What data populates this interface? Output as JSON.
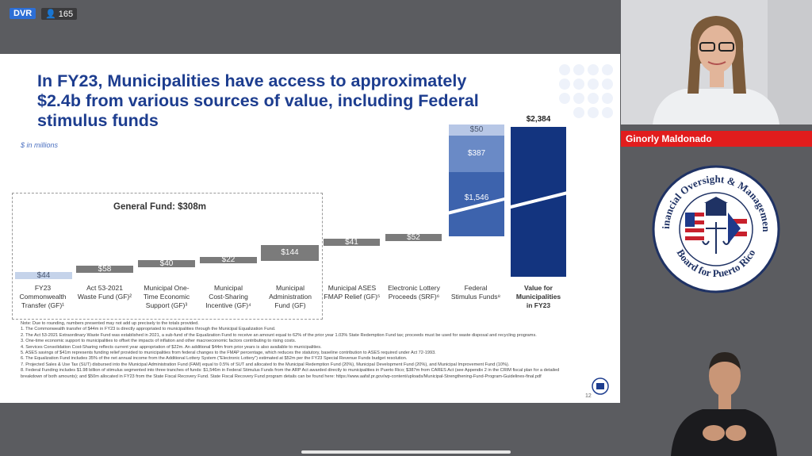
{
  "overlay": {
    "dvr": "DVR",
    "viewers": "165"
  },
  "slide": {
    "title_line1": "In FY23, Municipalities have access to approximately",
    "title_line2": "$2.4b from various sources of value, including Federal",
    "title_line3": "stimulus funds",
    "unit": "$ in millions",
    "general_fund_label": "General Fund: $308m",
    "page_number": "12",
    "notes": [
      "Note: Due to rounding, numbers presented may not add up precisely to the totals provided.",
      "1.   The Commonwealth transfer of $44m in FY23 is directly appropriated to municipalities through the Municipal Equalization Fund.",
      "2.   The Act 53-2021 Extraordinary Waste Fund was established in 2021, a sub-fund of the Equalization Fund to receive an amount equal to 62% of the prior year 1.03% State Redemption Fund tax; proceeds must be used for waste disposal and recycling programs.",
      "3.   One-time economic support to municipalities to offset the impacts of inflation and other macroeconomic factors contributing to rising costs.",
      "4.   Services Consolidation Cost-Sharing reflects current year appropriation of $22m. An additional $44m from prior years is also available to municipalities.",
      "5.   ASES savings of $41m represents funding relief provided to municipalities from federal changes to the FMAP percentage, which reduces the statutory, baseline contribution to ASES required under Act 72-1993.",
      "6.   The Equalization Fund includes 35% of the net annual income from the Additional Lottery System (\"Electronic Lottery\") estimated at $52m per the FY23 Special Revenue Funds budget resolution.",
      "7.   Projected Sales & Use Tax (SUT) disbursed into the Municipal Administration Fund (FAM) equal to 0.5% of SUT and allocated to the Municipal Redemption Fund (20%), Municipal Development Fund (20%), and Municipal Improvement Fund (10%).",
      "8.   Federal Funding includes $1.98 billion of stimulus segmented into three tranches of funds: $1,546m in Federal Stimulus Funds from the ARP Act awarded directly to municipalities in Puerto Rico; $387m from CARES Act (see Appendix 2 in the CRIM fiscal plan for a detailed",
      "      breakdown of both amounts); and $50m allocated in FY23 from the State Fiscal Recovery Fund. State Fiscal Recovery Fund program details can be found here: https://www.aafaf.pr.gov/wp-content/uploads/Municipal-Strengthening-Fund-Program-Guidelines-final.pdf"
    ]
  },
  "chart_data": {
    "type": "bar",
    "subtype": "waterfall",
    "title": "In FY23, Municipalities have access to approximately $2.4b from various sources of value, including Federal stimulus funds",
    "ylabel": "$ in millions",
    "categories": [
      "FY23 Commonwealth Transfer (GF)¹",
      "Act 53-2021 Waste Fund (GF)²",
      "Municipal One-Time Economic Support (GF)³",
      "Municipal Cost-Sharing Incentive (GF)⁴",
      "Municipal Administration Fund (GF)",
      "Municipal ASES FMAP Relief (GF)⁵",
      "Electronic Lottery Proceeds (SRF)⁶",
      "Federal Stimulus Funds⁸",
      "Value for Municipalities in FY23"
    ],
    "category_lines": [
      [
        "FY23",
        "Commonwealth",
        "Transfer (GF)¹"
      ],
      [
        "Act 53-2021",
        "Waste Fund (GF)²"
      ],
      [
        "Municipal One-",
        "Time Economic",
        "Support (GF)³"
      ],
      [
        "Municipal",
        "Cost-Sharing",
        "Incentive (GF)⁴"
      ],
      [
        "Municipal",
        "Administration",
        "Fund (GF)"
      ],
      [
        "Municipal ASES",
        "FMAP Relief (GF)⁵"
      ],
      [
        "Electronic Lottery",
        "Proceeds (SRF)⁶"
      ],
      [
        "Federal",
        "Stimulus Funds⁸"
      ],
      [
        "Value for",
        "Municipalities",
        "in FY23"
      ]
    ],
    "values": [
      44,
      58,
      40,
      22,
      144,
      41,
      52,
      1983,
      2384
    ],
    "labels": [
      "$44",
      "$58",
      "$40",
      "$22",
      "$144",
      "$41",
      "$52",
      "",
      "$2,384"
    ],
    "federal_stack": [
      {
        "name": "ARP Act",
        "value": 1546,
        "label": "$1,546"
      },
      {
        "name": "CARES Act",
        "value": 387,
        "label": "$387"
      },
      {
        "name": "State Fiscal Recovery Fund",
        "value": 50,
        "label": "$50"
      }
    ],
    "total": 2384,
    "general_fund_total": "$308m",
    "axis_broken": true
  },
  "colors": {
    "title": "#1d3d8f",
    "gf_bar": "#7b7b7b",
    "first_bar": "#c5d3ea",
    "fed_dark": "#3d63ad",
    "fed_mid": "#6a8ac6",
    "fed_light": "#b7c7e6",
    "total": "#13347f",
    "namebar": "#e11d1d"
  },
  "speaker": {
    "name": "Ginorly Maldonado"
  },
  "seal": {
    "text": "Financial Oversight & Management Board for Puerto Rico"
  }
}
